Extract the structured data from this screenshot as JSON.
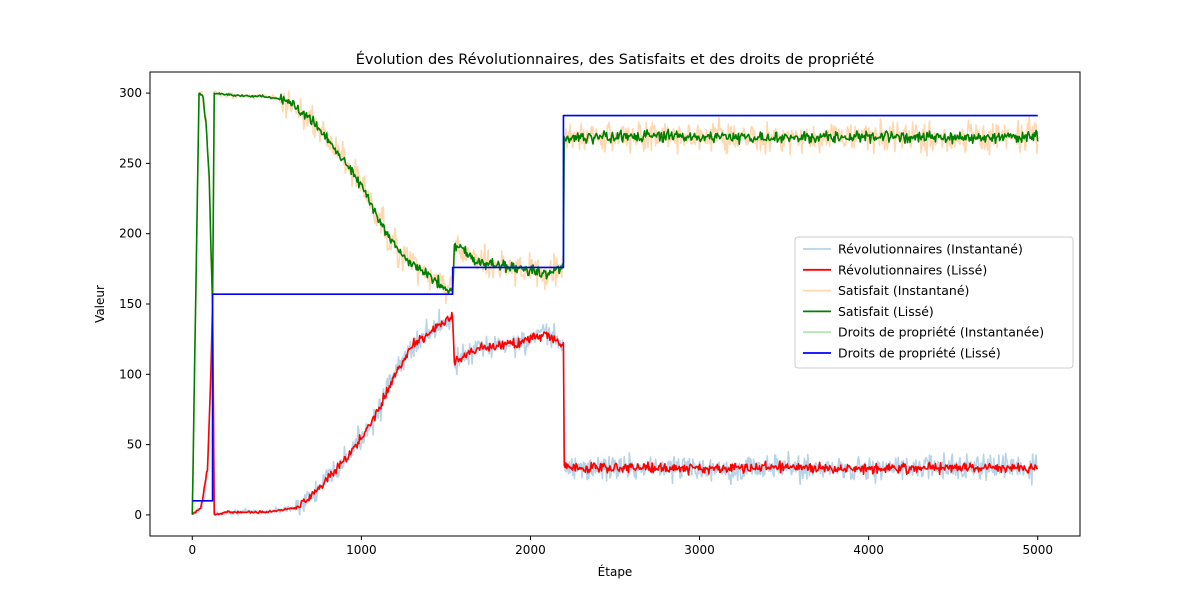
{
  "chart_data": {
    "type": "line",
    "title": "Évolution des Révolutionnaires, des Satisfaits et des droits de propriété",
    "xlabel": "Étape",
    "ylabel": "Valeur",
    "xlim": [
      -250,
      5250
    ],
    "ylim": [
      -15,
      315
    ],
    "xticks": [
      0,
      1000,
      2000,
      3000,
      4000,
      5000
    ],
    "yticks": [
      0,
      50,
      100,
      150,
      200,
      250,
      300
    ],
    "x_tick_labels": [
      "0",
      "1000",
      "2000",
      "3000",
      "4000",
      "5000"
    ],
    "y_tick_labels": [
      "0",
      "50",
      "100",
      "150",
      "200",
      "250",
      "300"
    ],
    "grid": false,
    "legend_position": "center-right",
    "legend": [
      "Révolutionnaires (Instantané)",
      "Révolutionnaires (Lissé)",
      "Satisfait (Instantané)",
      "Satisfait (Lissé)",
      "Droits de propriété (Instantanée)",
      "Droits de propriété (Lissé)"
    ],
    "series": [
      {
        "name": "Révolutionnaires (Instantané)",
        "color": "#a6c8e0",
        "opacity": 0.8,
        "noise": 9,
        "x": [
          0,
          50,
          90,
          110,
          120,
          130,
          200,
          300,
          400,
          500,
          600,
          700,
          800,
          900,
          1000,
          1100,
          1200,
          1300,
          1400,
          1500,
          1540,
          1550,
          1600,
          1700,
          1800,
          1900,
          2000,
          2100,
          2180,
          2195,
          2200,
          2300,
          2500,
          3000,
          3500,
          4000,
          4500,
          5000
        ],
        "y": [
          0,
          5,
          30,
          100,
          150,
          0,
          2,
          2,
          2,
          3,
          5,
          12,
          25,
          38,
          55,
          75,
          100,
          120,
          130,
          138,
          140,
          108,
          112,
          118,
          120,
          122,
          125,
          128,
          122,
          120,
          35,
          33,
          34,
          33,
          34,
          33,
          34,
          33
        ]
      },
      {
        "name": "Révolutionnaires (Lissé)",
        "color": "#ff0000",
        "opacity": 1,
        "noise": 3.5,
        "x": [
          0,
          50,
          90,
          110,
          120,
          130,
          200,
          300,
          400,
          500,
          600,
          700,
          800,
          900,
          1000,
          1100,
          1200,
          1300,
          1400,
          1500,
          1540,
          1550,
          1600,
          1700,
          1800,
          1900,
          2000,
          2100,
          2180,
          2195,
          2200,
          2300,
          2500,
          3000,
          3500,
          4000,
          4500,
          5000
        ],
        "y": [
          0,
          5,
          30,
          100,
          150,
          0,
          2,
          2,
          2,
          3,
          5,
          12,
          25,
          38,
          55,
          75,
          100,
          120,
          130,
          138,
          140,
          108,
          112,
          118,
          120,
          122,
          125,
          128,
          122,
          120,
          35,
          33,
          34,
          33,
          34,
          33,
          34,
          33
        ]
      },
      {
        "name": "Satisfait (Instantané)",
        "color": "#ffd1a3",
        "opacity": 0.85,
        "noise": 11,
        "x": [
          0,
          40,
          60,
          80,
          100,
          120,
          130,
          200,
          300,
          400,
          500,
          600,
          700,
          800,
          900,
          1000,
          1100,
          1200,
          1300,
          1400,
          1500,
          1540,
          1550,
          1600,
          1700,
          1800,
          1900,
          2000,
          2100,
          2180,
          2195,
          2200,
          2300,
          2500,
          3000,
          3500,
          4000,
          4500,
          5000
        ],
        "y": [
          0,
          300,
          298,
          280,
          240,
          150,
          300,
          299,
          298,
          298,
          296,
          292,
          282,
          268,
          252,
          235,
          210,
          190,
          178,
          170,
          162,
          160,
          192,
          188,
          180,
          178,
          176,
          174,
          172,
          175,
          178,
          267,
          268,
          269,
          269,
          268,
          269,
          268,
          269
        ]
      },
      {
        "name": "Satisfait (Lissé)",
        "color": "#008000",
        "opacity": 1,
        "noise": 4,
        "x": [
          0,
          40,
          60,
          80,
          100,
          120,
          130,
          200,
          300,
          400,
          500,
          600,
          700,
          800,
          900,
          1000,
          1100,
          1200,
          1300,
          1400,
          1500,
          1540,
          1550,
          1600,
          1700,
          1800,
          1900,
          2000,
          2100,
          2180,
          2195,
          2200,
          2300,
          2500,
          3000,
          3500,
          4000,
          4500,
          5000
        ],
        "y": [
          0,
          300,
          298,
          280,
          240,
          150,
          300,
          299,
          298,
          298,
          296,
          292,
          282,
          268,
          252,
          235,
          210,
          190,
          178,
          170,
          162,
          160,
          192,
          188,
          180,
          178,
          176,
          174,
          172,
          175,
          178,
          267,
          268,
          269,
          269,
          268,
          269,
          268,
          269
        ]
      },
      {
        "name": "Droits de propriété (Instantanée)",
        "color": "#98d898",
        "opacity": 0.7,
        "noise": 0,
        "x": [
          0,
          120,
          120,
          1540,
          1540,
          2195,
          2195,
          5000
        ],
        "y": [
          10,
          10,
          157,
          157,
          176,
          176,
          284,
          284
        ]
      },
      {
        "name": "Droits de propriété (Lissé)",
        "color": "#0000ff",
        "opacity": 1,
        "noise": 0,
        "x": [
          0,
          120,
          120,
          1540,
          1540,
          2195,
          2195,
          5000
        ],
        "y": [
          10,
          10,
          157,
          157,
          176,
          176,
          284,
          284
        ]
      }
    ]
  }
}
